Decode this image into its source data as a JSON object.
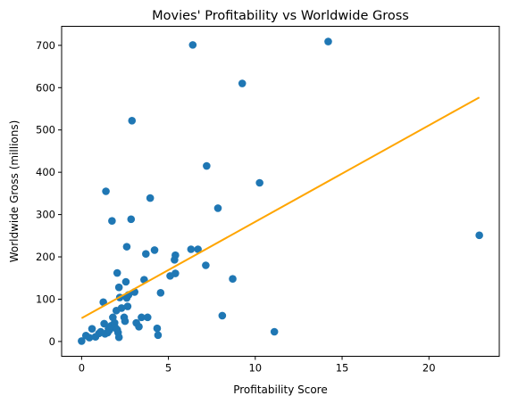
{
  "chart_data": {
    "type": "scatter",
    "title": "Movies' Profitability vs Worldwide Gross",
    "xlabel": "Profitability Score",
    "ylabel": "Worldwide Gross (millions)",
    "xlim": [
      -1.15,
      24.05
    ],
    "ylim": [
      -35,
      745
    ],
    "xticks": [
      0,
      5,
      10,
      15,
      20
    ],
    "yticks": [
      0,
      100,
      200,
      300,
      400,
      500,
      600,
      700
    ],
    "grid": false,
    "legend": "none",
    "colors": {
      "points": "#1f77b4",
      "trend": "#ffa500",
      "axes": "#000000"
    },
    "points": [
      {
        "x": 0.0,
        "y": 1
      },
      {
        "x": 0.25,
        "y": 14
      },
      {
        "x": 0.45,
        "y": 9
      },
      {
        "x": 0.6,
        "y": 30
      },
      {
        "x": 0.8,
        "y": 11
      },
      {
        "x": 1.0,
        "y": 19
      },
      {
        "x": 1.1,
        "y": 23
      },
      {
        "x": 1.25,
        "y": 93
      },
      {
        "x": 1.3,
        "y": 42
      },
      {
        "x": 1.35,
        "y": 18
      },
      {
        "x": 1.4,
        "y": 355
      },
      {
        "x": 1.5,
        "y": 21
      },
      {
        "x": 1.55,
        "y": 30
      },
      {
        "x": 1.6,
        "y": 27
      },
      {
        "x": 1.7,
        "y": 37
      },
      {
        "x": 1.75,
        "y": 285
      },
      {
        "x": 1.8,
        "y": 57
      },
      {
        "x": 1.9,
        "y": 44
      },
      {
        "x": 1.95,
        "y": 32
      },
      {
        "x": 2.0,
        "y": 73
      },
      {
        "x": 2.05,
        "y": 162
      },
      {
        "x": 2.05,
        "y": 28
      },
      {
        "x": 2.1,
        "y": 21
      },
      {
        "x": 2.15,
        "y": 128
      },
      {
        "x": 2.15,
        "y": 10
      },
      {
        "x": 2.2,
        "y": 104
      },
      {
        "x": 2.3,
        "y": 79
      },
      {
        "x": 2.45,
        "y": 57
      },
      {
        "x": 2.5,
        "y": 48
      },
      {
        "x": 2.55,
        "y": 141
      },
      {
        "x": 2.6,
        "y": 103
      },
      {
        "x": 2.6,
        "y": 224
      },
      {
        "x": 2.65,
        "y": 83
      },
      {
        "x": 2.7,
        "y": 110
      },
      {
        "x": 2.85,
        "y": 289
      },
      {
        "x": 2.9,
        "y": 522
      },
      {
        "x": 3.05,
        "y": 117
      },
      {
        "x": 3.15,
        "y": 44
      },
      {
        "x": 3.3,
        "y": 35
      },
      {
        "x": 3.45,
        "y": 57
      },
      {
        "x": 3.6,
        "y": 146
      },
      {
        "x": 3.7,
        "y": 207
      },
      {
        "x": 3.8,
        "y": 57
      },
      {
        "x": 3.95,
        "y": 339
      },
      {
        "x": 4.2,
        "y": 216
      },
      {
        "x": 4.35,
        "y": 31
      },
      {
        "x": 4.4,
        "y": 15
      },
      {
        "x": 4.55,
        "y": 115
      },
      {
        "x": 5.1,
        "y": 155
      },
      {
        "x": 5.35,
        "y": 193
      },
      {
        "x": 5.4,
        "y": 204
      },
      {
        "x": 5.4,
        "y": 161
      },
      {
        "x": 6.3,
        "y": 218
      },
      {
        "x": 6.4,
        "y": 701
      },
      {
        "x": 6.7,
        "y": 218
      },
      {
        "x": 7.15,
        "y": 180
      },
      {
        "x": 7.2,
        "y": 415
      },
      {
        "x": 7.85,
        "y": 315
      },
      {
        "x": 8.1,
        "y": 61
      },
      {
        "x": 8.7,
        "y": 148
      },
      {
        "x": 9.25,
        "y": 610
      },
      {
        "x": 10.25,
        "y": 375
      },
      {
        "x": 11.1,
        "y": 23
      },
      {
        "x": 14.2,
        "y": 709
      },
      {
        "x": 22.9,
        "y": 251
      }
    ],
    "trendline": {
      "x": [
        0,
        22.9
      ],
      "y": [
        55,
        577
      ]
    }
  }
}
